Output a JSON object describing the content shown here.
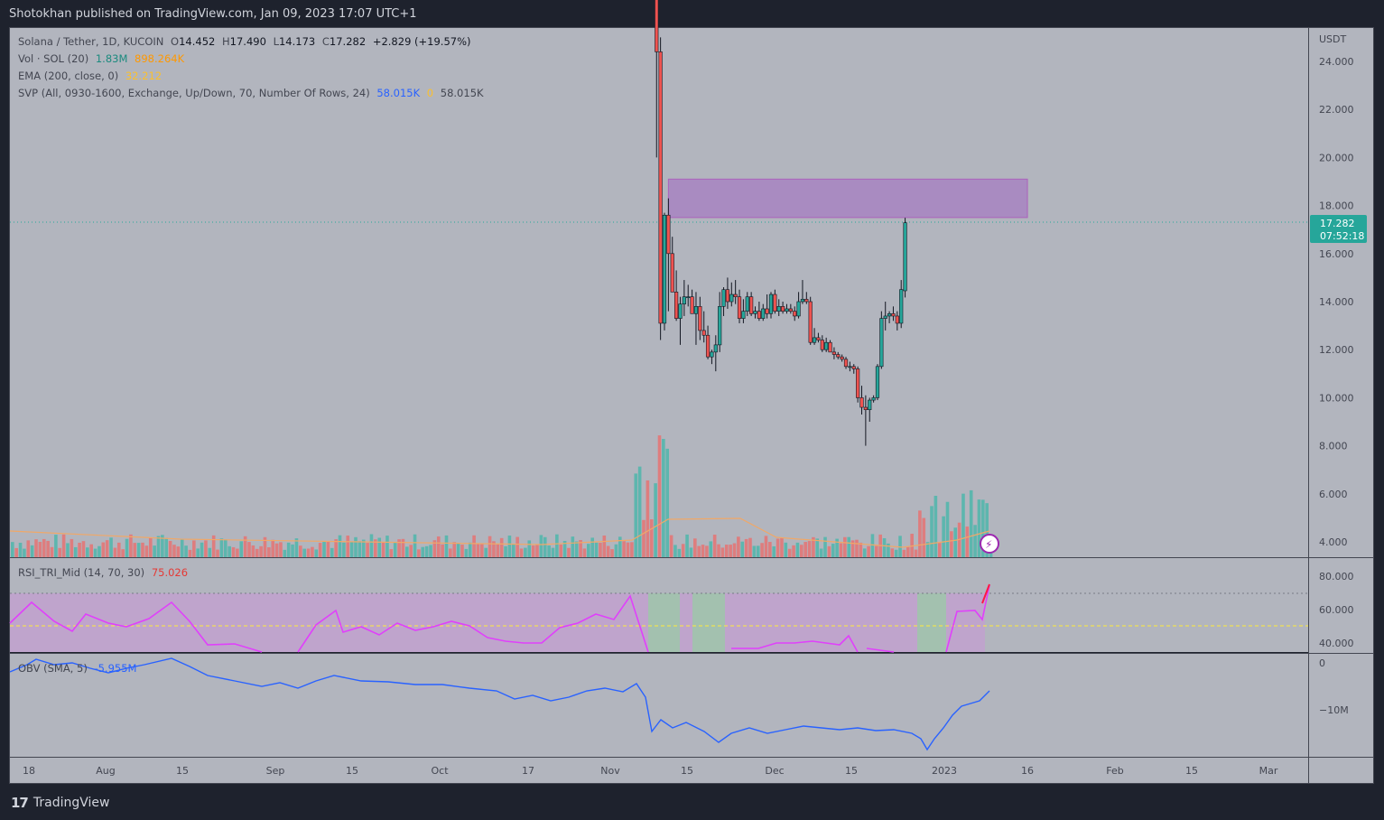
{
  "header": {
    "published": "Shotokhan published on TradingView.com, Jan 09, 2023 17:07 UTC+1"
  },
  "legend": {
    "symbol": "Solana / Tether, 1D, KUCOIN",
    "o_label": "O",
    "o": "14.452",
    "h_label": "H",
    "h": "17.490",
    "l_label": "L",
    "l": "14.173",
    "c_label": "C",
    "c": "17.282",
    "change": "+2.829 (+19.57%)",
    "vol_label": "Vol · SOL (20)",
    "vol_value": "1.83M",
    "vol_ma": "898.264K",
    "ema_label": "EMA (200, close, 0)",
    "ema_value": "32.212",
    "svp_label": "SVP (All, 0930-1600, Exchange, Up/Down, 70, Number Of Rows, 24)",
    "svp_v1": "58.015K",
    "svp_v2": "0",
    "svp_v3": "58.015K",
    "rsi_label": "RSI_TRI_Mid (14, 70, 30)",
    "rsi_value": "75.026",
    "obv_label": "OBV (SMA, 5)",
    "obv_value": "-5.955M"
  },
  "price_axis": {
    "currency": "USDT",
    "last_price": "17.282",
    "countdown": "07:52:18"
  },
  "footer": {
    "brand": "TradingView"
  },
  "colors": {
    "background": "#b2b5be",
    "up": "#26a69a",
    "down": "#ef5350",
    "zone": "#ab47bc",
    "rsi": "#e040fb",
    "obv": "#2962ff"
  },
  "chart_data": {
    "type": "candlestick",
    "title": "Solana / Tether, 1D, KUCOIN",
    "ylim": [
      3.5,
      25.5
    ],
    "price_ticks": [
      "24.000",
      "22.000",
      "20.000",
      "18.000",
      "16.000",
      "14.000",
      "12.000",
      "10.000",
      "8.000",
      "6.000",
      "4.000"
    ],
    "x_ticks": [
      "18",
      "Aug",
      "15",
      "Sep",
      "15",
      "Oct",
      "17",
      "Nov",
      "15",
      "Dec",
      "15",
      "2023",
      "16",
      "Feb",
      "15",
      "Mar"
    ],
    "resistance_zone": {
      "from_date": "2022-11-10",
      "to_date": "2023-02-09",
      "low": 17.5,
      "high": 19.1
    },
    "candles": [
      {
        "date": "2022-11-07",
        "o": 31.0,
        "h": 32.0,
        "l": 20.0,
        "c": 24.4
      },
      {
        "date": "2022-11-08",
        "o": 24.4,
        "h": 25.0,
        "l": 12.4,
        "c": 13.1
      },
      {
        "date": "2022-11-09",
        "o": 13.1,
        "h": 17.7,
        "l": 12.8,
        "c": 17.6
      },
      {
        "date": "2022-11-10",
        "o": 17.6,
        "h": 18.3,
        "l": 13.6,
        "c": 16.0
      },
      {
        "date": "2022-11-11",
        "o": 16.0,
        "h": 16.7,
        "l": 14.4,
        "c": 14.4
      },
      {
        "date": "2022-11-12",
        "o": 14.4,
        "h": 15.3,
        "l": 13.2,
        "c": 13.3
      },
      {
        "date": "2022-11-13",
        "o": 13.3,
        "h": 14.2,
        "l": 12.2,
        "c": 13.9
      },
      {
        "date": "2022-11-14",
        "o": 13.9,
        "h": 14.9,
        "l": 13.4,
        "c": 14.2
      },
      {
        "date": "2022-11-15",
        "o": 14.2,
        "h": 14.7,
        "l": 13.8,
        "c": 14.2
      },
      {
        "date": "2022-11-16",
        "o": 14.2,
        "h": 14.5,
        "l": 13.5,
        "c": 13.5
      },
      {
        "date": "2022-11-17",
        "o": 13.5,
        "h": 14.4,
        "l": 12.2,
        "c": 13.8
      },
      {
        "date": "2022-11-18",
        "o": 13.8,
        "h": 14.2,
        "l": 12.4,
        "c": 12.8
      },
      {
        "date": "2022-11-19",
        "o": 12.8,
        "h": 13.6,
        "l": 12.3,
        "c": 12.6
      },
      {
        "date": "2022-11-20",
        "o": 12.6,
        "h": 13.0,
        "l": 11.6,
        "c": 11.7
      },
      {
        "date": "2022-11-21",
        "o": 11.7,
        "h": 12.0,
        "l": 11.4,
        "c": 11.9
      },
      {
        "date": "2022-11-22",
        "o": 11.9,
        "h": 12.6,
        "l": 11.1,
        "c": 12.2
      },
      {
        "date": "2022-11-23",
        "o": 12.2,
        "h": 14.4,
        "l": 11.9,
        "c": 13.8
      },
      {
        "date": "2022-11-24",
        "o": 13.8,
        "h": 14.6,
        "l": 13.4,
        "c": 14.5
      },
      {
        "date": "2022-11-25",
        "o": 14.5,
        "h": 15.0,
        "l": 13.7,
        "c": 14.0
      },
      {
        "date": "2022-11-26",
        "o": 14.0,
        "h": 14.8,
        "l": 13.8,
        "c": 14.3
      },
      {
        "date": "2022-11-27",
        "o": 14.3,
        "h": 14.9,
        "l": 13.9,
        "c": 14.2
      },
      {
        "date": "2022-11-28",
        "o": 14.2,
        "h": 14.5,
        "l": 13.1,
        "c": 13.3
      },
      {
        "date": "2022-11-29",
        "o": 13.3,
        "h": 14.1,
        "l": 13.1,
        "c": 13.6
      },
      {
        "date": "2022-11-30",
        "o": 13.6,
        "h": 14.4,
        "l": 13.4,
        "c": 14.2
      },
      {
        "date": "2022-12-01",
        "o": 14.2,
        "h": 14.4,
        "l": 13.4,
        "c": 13.5
      },
      {
        "date": "2022-12-02",
        "o": 13.5,
        "h": 13.8,
        "l": 13.3,
        "c": 13.6
      },
      {
        "date": "2022-12-03",
        "o": 13.6,
        "h": 14.0,
        "l": 13.2,
        "c": 13.3
      },
      {
        "date": "2022-12-04",
        "o": 13.3,
        "h": 13.9,
        "l": 13.2,
        "c": 13.7
      },
      {
        "date": "2022-12-05",
        "o": 13.7,
        "h": 14.3,
        "l": 13.3,
        "c": 13.5
      },
      {
        "date": "2022-12-06",
        "o": 13.5,
        "h": 14.4,
        "l": 13.3,
        "c": 14.3
      },
      {
        "date": "2022-12-07",
        "o": 14.3,
        "h": 14.5,
        "l": 13.5,
        "c": 13.6
      },
      {
        "date": "2022-12-08",
        "o": 13.6,
        "h": 14.1,
        "l": 13.4,
        "c": 13.8
      },
      {
        "date": "2022-12-09",
        "o": 13.8,
        "h": 14.0,
        "l": 13.5,
        "c": 13.6
      },
      {
        "date": "2022-12-10",
        "o": 13.6,
        "h": 13.9,
        "l": 13.5,
        "c": 13.7
      },
      {
        "date": "2022-12-11",
        "o": 13.7,
        "h": 13.9,
        "l": 13.5,
        "c": 13.6
      },
      {
        "date": "2022-12-12",
        "o": 13.6,
        "h": 13.8,
        "l": 13.2,
        "c": 13.4
      },
      {
        "date": "2022-12-13",
        "o": 13.4,
        "h": 14.4,
        "l": 13.3,
        "c": 14.0
      },
      {
        "date": "2022-12-14",
        "o": 14.0,
        "h": 14.9,
        "l": 13.9,
        "c": 14.1
      },
      {
        "date": "2022-12-15",
        "o": 14.1,
        "h": 14.4,
        "l": 13.9,
        "c": 14.0
      },
      {
        "date": "2022-12-16",
        "o": 14.0,
        "h": 14.2,
        "l": 12.2,
        "c": 12.3
      },
      {
        "date": "2022-12-17",
        "o": 12.3,
        "h": 12.9,
        "l": 12.2,
        "c": 12.5
      },
      {
        "date": "2022-12-18",
        "o": 12.5,
        "h": 12.7,
        "l": 12.3,
        "c": 12.4
      },
      {
        "date": "2022-12-19",
        "o": 12.4,
        "h": 12.6,
        "l": 11.9,
        "c": 12.0
      },
      {
        "date": "2022-12-20",
        "o": 12.0,
        "h": 12.5,
        "l": 11.9,
        "c": 12.3
      },
      {
        "date": "2022-12-21",
        "o": 12.3,
        "h": 12.4,
        "l": 11.9,
        "c": 11.9
      },
      {
        "date": "2022-12-22",
        "o": 11.9,
        "h": 12.1,
        "l": 11.6,
        "c": 11.8
      },
      {
        "date": "2022-12-23",
        "o": 11.8,
        "h": 11.9,
        "l": 11.6,
        "c": 11.7
      },
      {
        "date": "2022-12-24",
        "o": 11.7,
        "h": 11.8,
        "l": 11.5,
        "c": 11.6
      },
      {
        "date": "2022-12-25",
        "o": 11.6,
        "h": 11.7,
        "l": 11.2,
        "c": 11.3
      },
      {
        "date": "2022-12-26",
        "o": 11.3,
        "h": 11.5,
        "l": 11.1,
        "c": 11.3
      },
      {
        "date": "2022-12-27",
        "o": 11.3,
        "h": 11.4,
        "l": 11.0,
        "c": 11.2
      },
      {
        "date": "2022-12-28",
        "o": 11.2,
        "h": 11.3,
        "l": 9.8,
        "c": 10.0
      },
      {
        "date": "2022-12-29",
        "o": 10.0,
        "h": 10.5,
        "l": 9.3,
        "c": 9.6
      },
      {
        "date": "2022-12-30",
        "o": 9.6,
        "h": 10.1,
        "l": 8.0,
        "c": 9.5
      },
      {
        "date": "2022-12-31",
        "o": 9.5,
        "h": 10.0,
        "l": 9.0,
        "c": 9.9
      },
      {
        "date": "2023-01-01",
        "o": 9.9,
        "h": 10.1,
        "l": 9.8,
        "c": 10.0
      },
      {
        "date": "2023-01-02",
        "o": 10.0,
        "h": 11.4,
        "l": 9.9,
        "c": 11.3
      },
      {
        "date": "2023-01-03",
        "o": 11.3,
        "h": 13.6,
        "l": 11.2,
        "c": 13.3
      },
      {
        "date": "2023-01-04",
        "o": 13.3,
        "h": 14.0,
        "l": 12.8,
        "c": 13.4
      },
      {
        "date": "2023-01-05",
        "o": 13.4,
        "h": 13.6,
        "l": 13.1,
        "c": 13.5
      },
      {
        "date": "2023-01-06",
        "o": 13.5,
        "h": 13.8,
        "l": 13.2,
        "c": 13.4
      },
      {
        "date": "2023-01-07",
        "o": 13.4,
        "h": 13.6,
        "l": 12.8,
        "c": 13.1
      },
      {
        "date": "2023-01-08",
        "o": 13.1,
        "h": 14.9,
        "l": 12.9,
        "c": 14.5
      },
      {
        "date": "2023-01-09",
        "o": 14.452,
        "h": 17.49,
        "l": 14.173,
        "c": 17.282
      }
    ]
  }
}
